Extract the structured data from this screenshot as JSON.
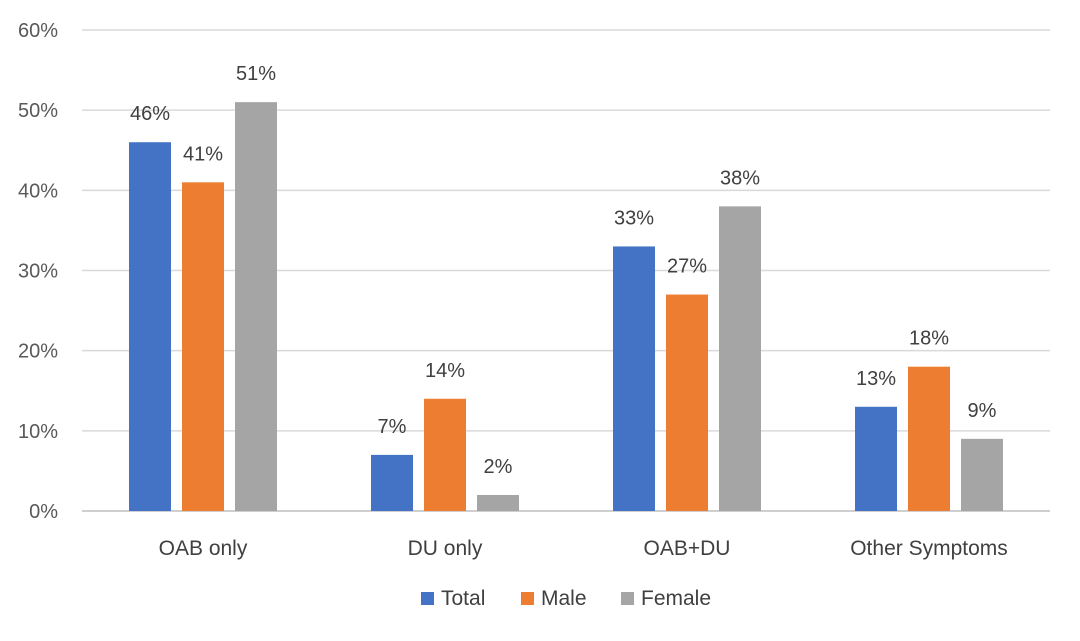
{
  "chart_data": {
    "type": "bar",
    "categories": [
      "OAB only",
      "DU only",
      "OAB+DU",
      "Other Symptoms"
    ],
    "series": [
      {
        "name": "Total",
        "color": "#4472c4",
        "values": [
          46,
          7,
          33,
          13
        ],
        "labels": [
          "46%",
          "7%",
          "33%",
          "13%"
        ]
      },
      {
        "name": "Male",
        "color": "#ed7d31",
        "values": [
          41,
          14,
          27,
          18
        ],
        "labels": [
          "41%",
          "14%",
          "27%",
          "18%"
        ]
      },
      {
        "name": "Female",
        "color": "#a5a5a5",
        "values": [
          51,
          2,
          38,
          9
        ],
        "labels": [
          "51%",
          "2%",
          "38%",
          "9%"
        ]
      }
    ],
    "ylim": [
      0,
      60
    ],
    "yticks": [
      0,
      10,
      20,
      30,
      40,
      50,
      60
    ],
    "ytick_labels": [
      "0%",
      "10%",
      "20%",
      "30%",
      "40%",
      "50%",
      "60%"
    ],
    "grid": true,
    "legend_position": "bottom",
    "title": "",
    "xlabel": "",
    "ylabel": ""
  }
}
